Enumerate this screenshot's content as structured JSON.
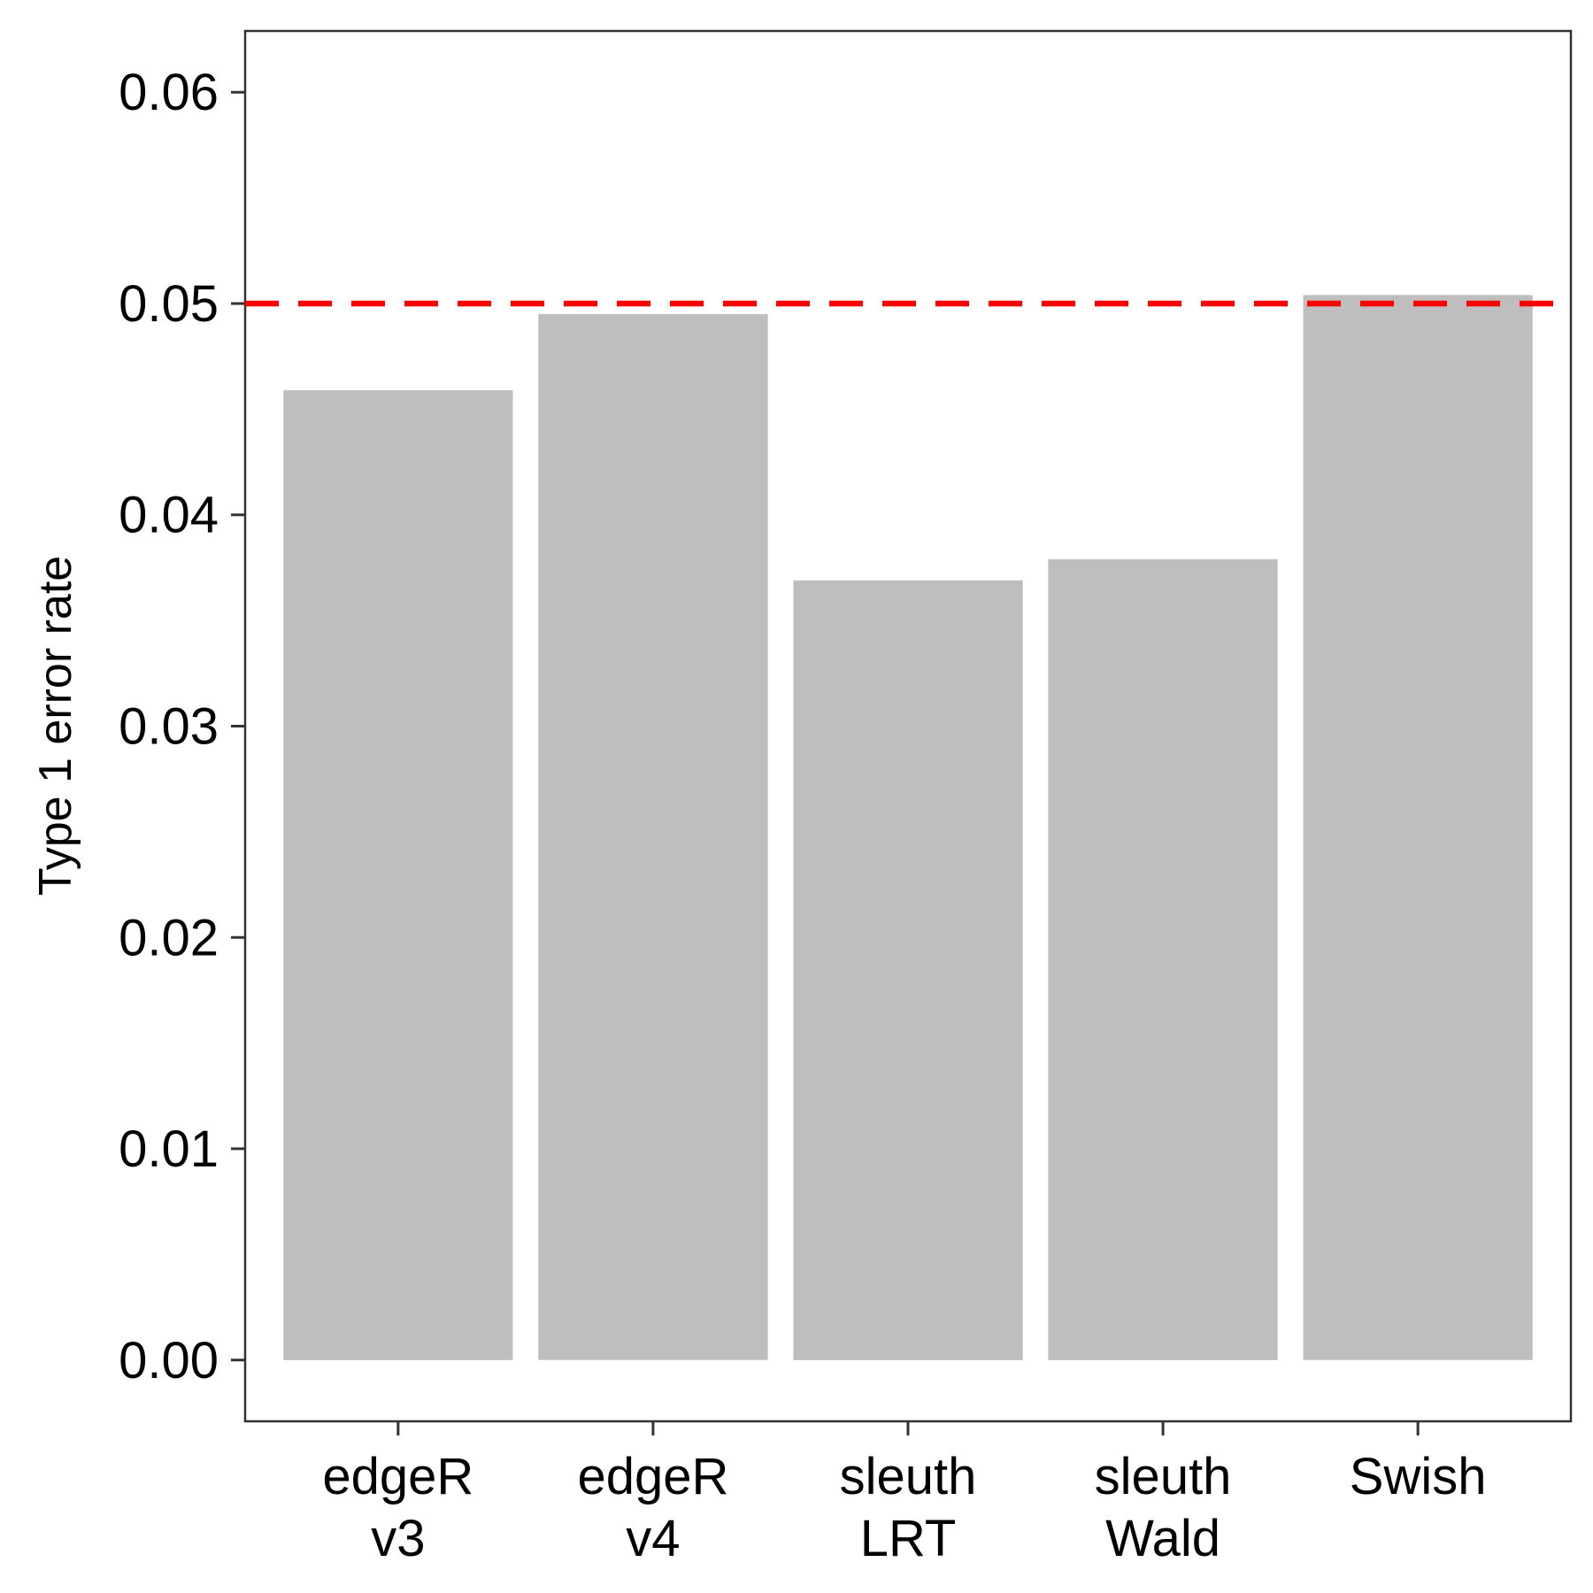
{
  "chart_data": {
    "type": "bar",
    "title": "",
    "xlabel": "",
    "ylabel": "Type 1 error rate",
    "categories": [
      [
        "edgeR",
        "v3"
      ],
      [
        "edgeR",
        "v4"
      ],
      [
        "sleuth",
        "LRT"
      ],
      [
        "sleuth",
        "Wald"
      ],
      [
        "Swish"
      ]
    ],
    "values": [
      0.0459,
      0.0495,
      0.0369,
      0.0379,
      0.0504
    ],
    "ylim": [
      -0.0029,
      0.0629
    ],
    "yticks": [
      "0.00",
      "0.01",
      "0.02",
      "0.03",
      "0.04",
      "0.05",
      "0.06"
    ],
    "reference_line": {
      "y": 0.05,
      "style": "dashed",
      "color": "#ff0000"
    },
    "bar_color": "#bebebe",
    "grid": false,
    "legend": "none"
  }
}
